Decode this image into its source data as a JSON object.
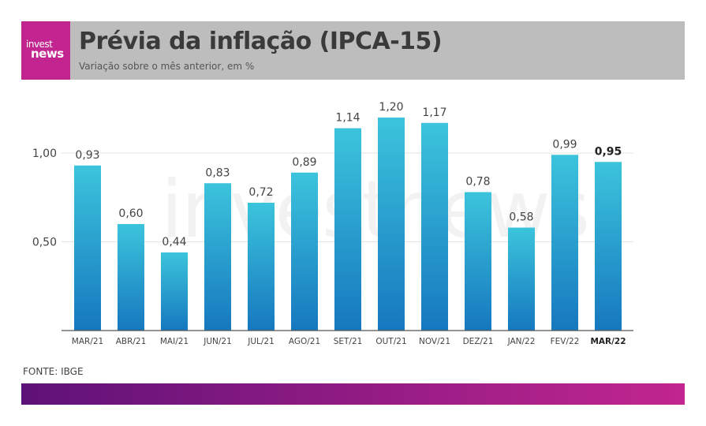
{
  "header": {
    "logo_line1": "invest",
    "logo_line2": "news",
    "title": "Prévia da inflação (IPCA-15)",
    "subtitle": "Variação sobre o mês anterior, em %"
  },
  "source": "FONTE: IBGE",
  "watermark": "investnews",
  "colors": {
    "bar_top": "#3cc4dc",
    "bar_bottom": "#1678bf",
    "brand_magenta": "#c2258f",
    "brand_purple": "#5e1278",
    "header_bg": "#bdbdbd"
  },
  "chart_data": {
    "type": "bar",
    "categories": [
      "MAR/21",
      "ABR/21",
      "MAI/21",
      "JUN/21",
      "JUL/21",
      "AGO/21",
      "SET/21",
      "OUT/21",
      "NOV/21",
      "DEZ/21",
      "JAN/22",
      "FEV/22",
      "MAR/22"
    ],
    "values": [
      0.93,
      0.6,
      0.44,
      0.83,
      0.72,
      0.89,
      1.14,
      1.2,
      1.17,
      0.78,
      0.58,
      0.99,
      0.95
    ],
    "value_labels": [
      "0,93",
      "0,60",
      "0,44",
      "0,83",
      "0,72",
      "0,89",
      "1,14",
      "1,20",
      "1,17",
      "0,78",
      "0,58",
      "0,99",
      "0,95"
    ],
    "highlight_index": 12,
    "yticks": [
      0.5,
      1.0
    ],
    "ytick_labels": [
      "0,50",
      "1,00"
    ],
    "ylim": [
      0,
      1.2
    ],
    "grid": true,
    "title": "Prévia da inflação (IPCA-15)",
    "xlabel": "",
    "ylabel": ""
  }
}
